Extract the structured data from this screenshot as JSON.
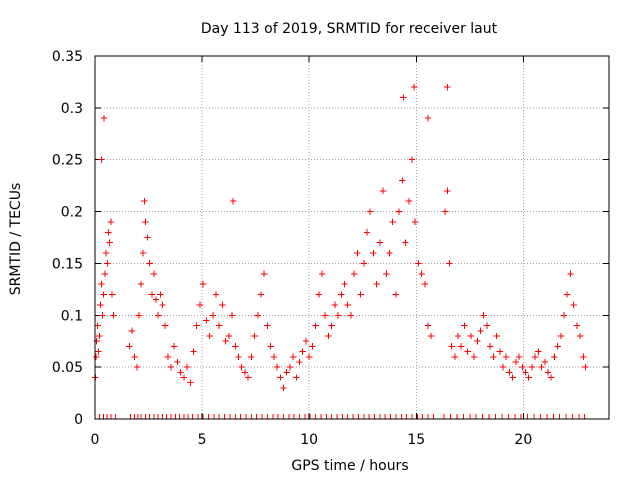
{
  "chart_data": {
    "type": "scatter",
    "title": "Day 113 of 2019, SRMTID for receiver laut",
    "xlabel": "GPS time / hours",
    "ylabel": "SRMTID / TECUs",
    "xlim": [
      0,
      24
    ],
    "ylim": [
      0,
      0.35
    ],
    "x_ticks": [
      0,
      5,
      10,
      15,
      20
    ],
    "x_tick_labels": [
      "0",
      "5",
      "10",
      "15",
      "20"
    ],
    "y_ticks": [
      0,
      0.05,
      0.1,
      0.15,
      0.2,
      0.25,
      0.3,
      0.35
    ],
    "y_tick_labels": [
      "0",
      "0.05",
      "0.1",
      "0.15",
      "0.2",
      "0.25",
      "0.3",
      "0.35"
    ],
    "grid": true,
    "legend": "none",
    "marker": "plus",
    "series": [
      {
        "name": "SRMTID",
        "color": "#ff0000",
        "x": [
          0.02,
          0.05,
          0.08,
          0.12,
          0.16,
          0.2,
          0.25,
          0.3,
          0.34,
          0.4,
          0.46,
          0.52,
          0.58,
          0.62,
          0.68,
          0.74,
          0.8,
          0.86,
          1.6,
          1.72,
          1.85,
          1.96,
          2.05,
          2.15,
          2.25,
          2.35,
          2.45,
          2.55,
          2.65,
          2.75,
          2.85,
          2.95,
          3.05,
          3.15,
          3.28,
          3.4,
          3.55,
          3.7,
          3.85,
          4.0,
          4.15,
          4.3,
          4.45,
          4.6,
          4.75,
          4.9,
          5.05,
          5.2,
          5.35,
          5.5,
          5.65,
          5.8,
          5.95,
          6.1,
          6.25,
          6.4,
          6.55,
          6.7,
          6.85,
          7.0,
          7.15,
          7.3,
          7.45,
          7.6,
          7.75,
          7.9,
          8.05,
          8.2,
          8.35,
          8.5,
          8.65,
          8.8,
          8.95,
          9.1,
          9.25,
          9.4,
          9.55,
          9.7,
          9.85,
          10.0,
          10.15,
          10.3,
          10.45,
          10.6,
          10.75,
          10.9,
          11.05,
          11.2,
          11.35,
          11.5,
          11.65,
          11.8,
          11.95,
          12.1,
          12.25,
          12.4,
          12.55,
          12.7,
          12.85,
          13.0,
          13.15,
          13.3,
          13.45,
          13.6,
          13.75,
          13.9,
          14.05,
          14.2,
          14.35,
          14.5,
          14.65,
          14.8,
          14.95,
          15.1,
          15.25,
          15.4,
          15.55,
          15.7,
          16.35,
          16.45,
          16.55,
          16.65,
          16.8,
          16.95,
          17.1,
          17.25,
          17.4,
          17.55,
          17.7,
          17.85,
          18.0,
          18.15,
          18.3,
          18.45,
          18.6,
          18.75,
          18.9,
          19.05,
          19.2,
          19.35,
          19.5,
          19.65,
          19.8,
          19.95,
          20.1,
          20.25,
          20.4,
          20.55,
          20.7,
          20.85,
          21.0,
          21.15,
          21.3,
          21.45,
          21.6,
          21.75,
          21.9,
          22.05,
          22.2,
          22.35,
          22.5,
          22.65,
          22.8,
          22.9,
          0.3,
          0.42,
          2.3,
          6.45,
          14.4,
          14.9,
          16.45,
          15.55
        ],
        "y": [
          0.04,
          0.06,
          0.075,
          0.09,
          0.065,
          0.08,
          0.11,
          0.13,
          0.1,
          0.12,
          0.14,
          0.16,
          0.15,
          0.18,
          0.17,
          0.19,
          0.12,
          0.1,
          0.07,
          0.085,
          0.06,
          0.05,
          0.1,
          0.13,
          0.16,
          0.19,
          0.175,
          0.15,
          0.12,
          0.14,
          0.115,
          0.1,
          0.12,
          0.11,
          0.09,
          0.06,
          0.05,
          0.07,
          0.055,
          0.045,
          0.04,
          0.05,
          0.035,
          0.065,
          0.09,
          0.11,
          0.13,
          0.095,
          0.08,
          0.1,
          0.12,
          0.09,
          0.11,
          0.075,
          0.08,
          0.1,
          0.07,
          0.06,
          0.05,
          0.045,
          0.04,
          0.06,
          0.08,
          0.1,
          0.12,
          0.14,
          0.09,
          0.07,
          0.06,
          0.05,
          0.04,
          0.03,
          0.045,
          0.05,
          0.06,
          0.04,
          0.055,
          0.065,
          0.075,
          0.06,
          0.07,
          0.09,
          0.12,
          0.14,
          0.1,
          0.08,
          0.09,
          0.11,
          0.1,
          0.12,
          0.13,
          0.11,
          0.1,
          0.14,
          0.16,
          0.12,
          0.15,
          0.18,
          0.2,
          0.16,
          0.13,
          0.17,
          0.22,
          0.14,
          0.16,
          0.19,
          0.12,
          0.2,
          0.23,
          0.17,
          0.21,
          0.25,
          0.19,
          0.15,
          0.14,
          0.13,
          0.09,
          0.08,
          0.2,
          0.22,
          0.15,
          0.07,
          0.06,
          0.08,
          0.07,
          0.09,
          0.065,
          0.08,
          0.06,
          0.075,
          0.085,
          0.1,
          0.09,
          0.07,
          0.06,
          0.08,
          0.065,
          0.05,
          0.06,
          0.045,
          0.04,
          0.055,
          0.06,
          0.05,
          0.045,
          0.04,
          0.05,
          0.06,
          0.065,
          0.05,
          0.055,
          0.045,
          0.04,
          0.06,
          0.07,
          0.08,
          0.1,
          0.12,
          0.14,
          0.11,
          0.09,
          0.08,
          0.06,
          0.05,
          0.25,
          0.29,
          0.21,
          0.21,
          0.31,
          0.32,
          0.32,
          0.29
        ]
      }
    ],
    "baseline_x": [
      0.2,
      0.4,
      0.55,
      0.75,
      0.95,
      1.65,
      1.85,
      2.0,
      2.15,
      2.35,
      2.55,
      2.75,
      2.95,
      3.15,
      3.35,
      3.55,
      3.75,
      3.95,
      4.15,
      4.35,
      4.55,
      4.8,
      5.05,
      5.3,
      5.55,
      5.8,
      6.05,
      6.3,
      6.55,
      6.8,
      7.05,
      7.3,
      7.55,
      7.8,
      8.05,
      8.3,
      8.55,
      8.8,
      9.05,
      9.3,
      9.55,
      9.8,
      10.05,
      10.3,
      10.55,
      10.8,
      11.05,
      11.3,
      11.55,
      11.8,
      12.05,
      12.3,
      12.55,
      12.8,
      13.05,
      13.3,
      13.55,
      13.8,
      14.05,
      14.3,
      14.55,
      14.8,
      15.05,
      15.3,
      15.55,
      15.8,
      16.3,
      16.6,
      16.9,
      17.2,
      17.5,
      17.8,
      18.1,
      18.4,
      18.7,
      19.0,
      19.3,
      19.6,
      19.9,
      20.2,
      20.5,
      20.8,
      21.1,
      21.4,
      21.7,
      22.0,
      22.3,
      22.6,
      22.85
    ]
  }
}
